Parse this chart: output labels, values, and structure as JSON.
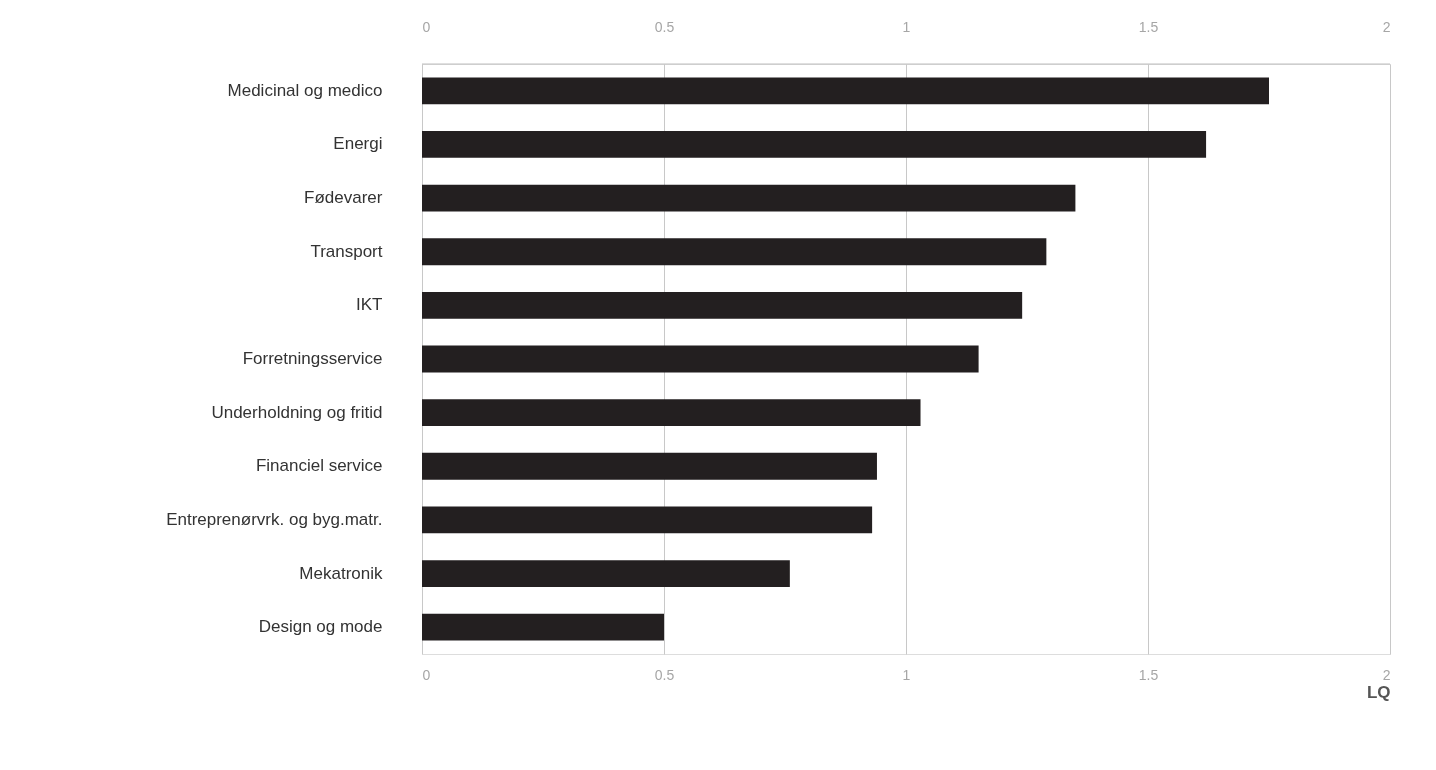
{
  "chart_data": {
    "type": "bar",
    "orientation": "horizontal",
    "xlabel": "LQ",
    "categories": [
      "Medicinal og medico",
      "Energi",
      "Fødevarer",
      "Transport",
      "IKT",
      "Forretningsservice",
      "Underholdning og fritid",
      "Financiel service",
      "Entreprenørvrk. og byg.matr.",
      "Mekatronik",
      "Design og mode"
    ],
    "series": [
      {
        "color": "#231f20",
        "values": [
          1.75,
          1.62,
          1.35,
          1.29,
          1.24,
          1.15,
          1.03,
          0.94,
          0.93,
          0.76,
          0.5
        ]
      }
    ],
    "xlim": [
      0,
      2
    ],
    "xticks": [
      0,
      0.5,
      1,
      1.5,
      2
    ],
    "x2lim": [
      0,
      2
    ],
    "x2ticks": [
      0,
      0.5,
      1,
      1.5,
      2
    ],
    "grid": "x"
  }
}
